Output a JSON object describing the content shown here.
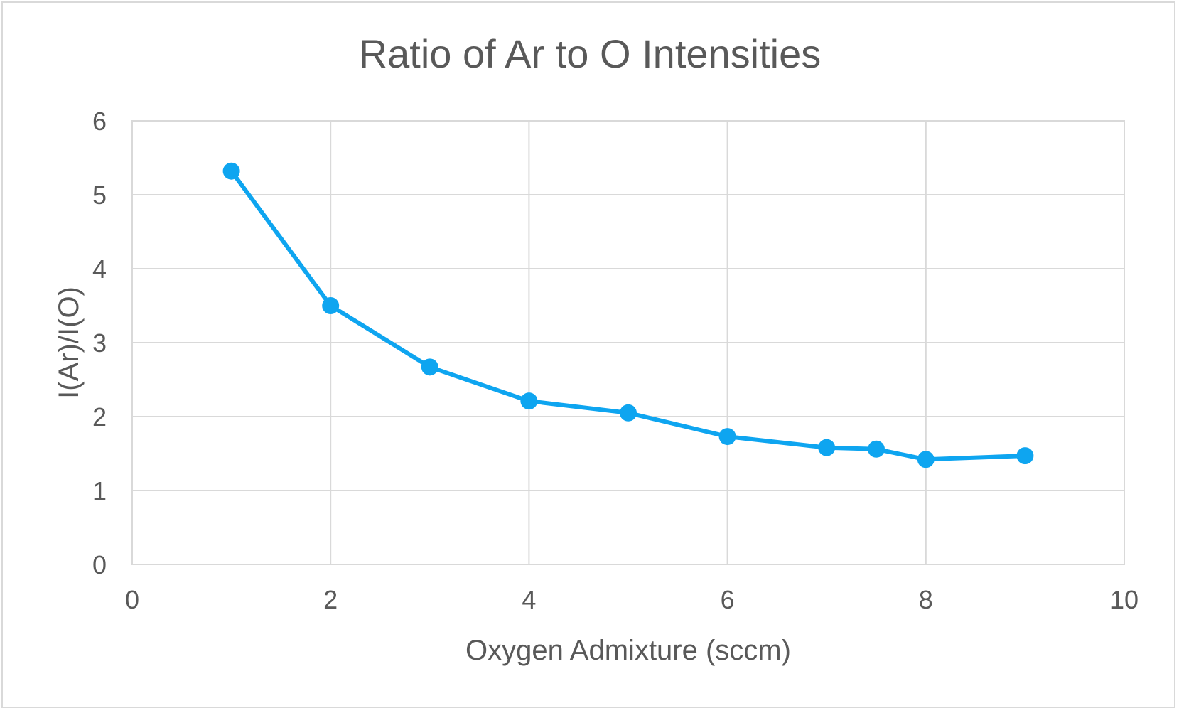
{
  "chart_data": {
    "type": "line",
    "title": "Ratio of Ar to O Intensities",
    "xlabel": "Oxygen Admixture (sccm)",
    "ylabel": "I(Ar)/I(O)",
    "xlim": [
      0,
      10
    ],
    "ylim": [
      0,
      6
    ],
    "xticks": [
      0,
      2,
      4,
      6,
      8,
      10
    ],
    "yticks": [
      0,
      1,
      2,
      3,
      4,
      5,
      6
    ],
    "grid": true,
    "legend": "none",
    "series": [
      {
        "color": "#0ea5f0",
        "marker": "circle",
        "x": [
          1,
          2,
          3,
          4,
          5,
          6,
          7,
          7.5,
          8,
          9
        ],
        "y": [
          5.32,
          3.5,
          2.67,
          2.21,
          2.05,
          1.73,
          1.58,
          1.56,
          1.42,
          1.47
        ]
      }
    ]
  }
}
